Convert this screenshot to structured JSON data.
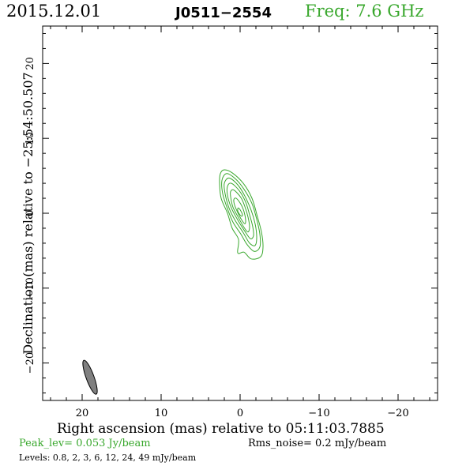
{
  "header": {
    "date": "2015.12.01",
    "source": "J0511−2554",
    "freq": "Freq: 7.6 GHz"
  },
  "footer": {
    "peak": "Peak_lev=  0.053 Jy/beam",
    "rms": "Rms_noise=   0.2 mJy/beam",
    "levels": "Levels: 0.8,   2,   3,   6,  12,  24,  49 mJy/beam"
  },
  "colors": {
    "accent": "#3aa82e",
    "beam": "#808080",
    "frame": "#000000"
  },
  "chart_data": {
    "type": "contour",
    "xlabel": "Right ascension (mas) relative to 05:11:03.7885",
    "ylabel": "Declination (mas) relative to −25:54:50.507",
    "xlim": [
      25,
      -25
    ],
    "ylim": [
      -25,
      25
    ],
    "x_ticks": [
      20,
      10,
      0,
      -10,
      -20
    ],
    "x_tick_labels": [
      "20",
      "10",
      "0",
      "−10",
      "−20"
    ],
    "y_ticks": [
      20,
      10,
      0,
      -10,
      -20
    ],
    "y_tick_labels": [
      "20",
      "10",
      "0",
      "−10",
      "−20"
    ],
    "levels_mJy": [
      0.8,
      2,
      3,
      6,
      12,
      24,
      49
    ],
    "contours": [
      [
        [
          2.0,
          5.8
        ],
        [
          1.0,
          5.4
        ],
        [
          -0.4,
          4.0
        ],
        [
          -1.5,
          2.0
        ],
        [
          -2.2,
          -0.5
        ],
        [
          -2.7,
          -2.5
        ],
        [
          -2.9,
          -4.5
        ],
        [
          -2.6,
          -5.8
        ],
        [
          -1.4,
          -6.1
        ],
        [
          -0.5,
          -5.2
        ],
        [
          0.3,
          -5.3
        ],
        [
          0.2,
          -3.5
        ],
        [
          1.0,
          -2.0
        ],
        [
          1.6,
          0
        ],
        [
          2.4,
          2.0
        ],
        [
          2.6,
          4.0
        ],
        [
          2.5,
          5.3
        ]
      ],
      [
        [
          1.7,
          5.3
        ],
        [
          0.6,
          4.6
        ],
        [
          -0.5,
          3.2
        ],
        [
          -1.5,
          1.3
        ],
        [
          -2.1,
          -0.8
        ],
        [
          -2.5,
          -2.8
        ],
        [
          -2.5,
          -4.5
        ],
        [
          -1.8,
          -5.1
        ],
        [
          -0.9,
          -4.2
        ],
        [
          -0.1,
          -2.8
        ],
        [
          0.9,
          -1.2
        ],
        [
          1.6,
          0.6
        ],
        [
          2.2,
          2.6
        ],
        [
          2.3,
          4.4
        ]
      ],
      [
        [
          1.4,
          4.7
        ],
        [
          0.3,
          3.8
        ],
        [
          -0.6,
          2.3
        ],
        [
          -1.4,
          0.4
        ],
        [
          -1.9,
          -1.4
        ],
        [
          -2.1,
          -3.2
        ],
        [
          -1.9,
          -4.3
        ],
        [
          -1.2,
          -4.0
        ],
        [
          -0.4,
          -2.6
        ],
        [
          0.6,
          -1.0
        ],
        [
          1.4,
          0.7
        ],
        [
          1.9,
          2.6
        ],
        [
          2.0,
          4.0
        ]
      ],
      [
        [
          1.1,
          4.0
        ],
        [
          0.1,
          3.0
        ],
        [
          -0.7,
          1.5
        ],
        [
          -1.2,
          -0.2
        ],
        [
          -1.6,
          -1.8
        ],
        [
          -1.7,
          -3.0
        ],
        [
          -1.3,
          -3.4
        ],
        [
          -0.6,
          -2.4
        ],
        [
          0.3,
          -0.9
        ],
        [
          1.1,
          0.7
        ],
        [
          1.6,
          2.4
        ],
        [
          1.6,
          3.6
        ]
      ],
      [
        [
          0.8,
          3.1
        ],
        [
          -0.1,
          2.1
        ],
        [
          -0.6,
          0.9
        ],
        [
          -1.0,
          -0.5
        ],
        [
          -1.2,
          -1.8
        ],
        [
          -1.0,
          -2.5
        ],
        [
          -0.5,
          -1.9
        ],
        [
          0.2,
          -0.6
        ],
        [
          0.9,
          0.8
        ],
        [
          1.2,
          2.2
        ],
        [
          1.2,
          2.9
        ]
      ],
      [
        [
          0.5,
          2.0
        ],
        [
          -0.1,
          1.2
        ],
        [
          -0.5,
          0.2
        ],
        [
          -0.7,
          -0.9
        ],
        [
          -0.6,
          -1.4
        ],
        [
          -0.2,
          -0.9
        ],
        [
          0.3,
          0.1
        ],
        [
          0.7,
          1.1
        ],
        [
          0.8,
          1.8
        ]
      ],
      [
        [
          0.2,
          0.7
        ],
        [
          -0.1,
          0.3
        ],
        [
          -0.3,
          -0.2
        ],
        [
          -0.2,
          -0.4
        ],
        [
          0.1,
          -0.1
        ],
        [
          0.3,
          0.3
        ],
        [
          0.3,
          0.6
        ]
      ]
    ],
    "beam": {
      "center": [
        19.0,
        -21.9
      ],
      "major_mas": 4.8,
      "minor_mas": 1.0,
      "pa_deg": 20
    }
  }
}
